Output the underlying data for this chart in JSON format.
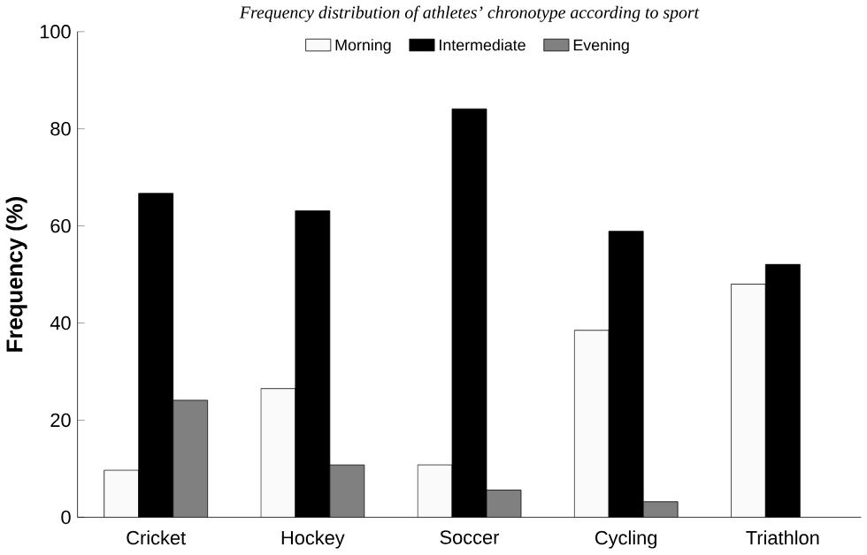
{
  "chart_data": {
    "type": "bar",
    "title": "Frequency distribution of athletes’ chronotype according to sport",
    "ylabel": "Frequency (%)",
    "categories": [
      "Cricket",
      "Hockey",
      "Soccer",
      "Cycling",
      "Triathlon"
    ],
    "series": [
      {
        "name": "Morning",
        "color": "#fafafa",
        "values": [
          9.7,
          26.5,
          10.8,
          38.5,
          48.0
        ]
      },
      {
        "name": "Intermediate",
        "color": "#000000",
        "values": [
          66.7,
          63.1,
          84.1,
          58.9,
          52.1
        ]
      },
      {
        "name": "Evening",
        "color": "#808080",
        "values": [
          24.1,
          10.8,
          5.6,
          3.2,
          null
        ]
      }
    ],
    "ylim": [
      0,
      100
    ],
    "yticks": [
      0,
      20,
      40,
      60,
      80,
      100
    ],
    "grid": false,
    "legend": "top"
  }
}
